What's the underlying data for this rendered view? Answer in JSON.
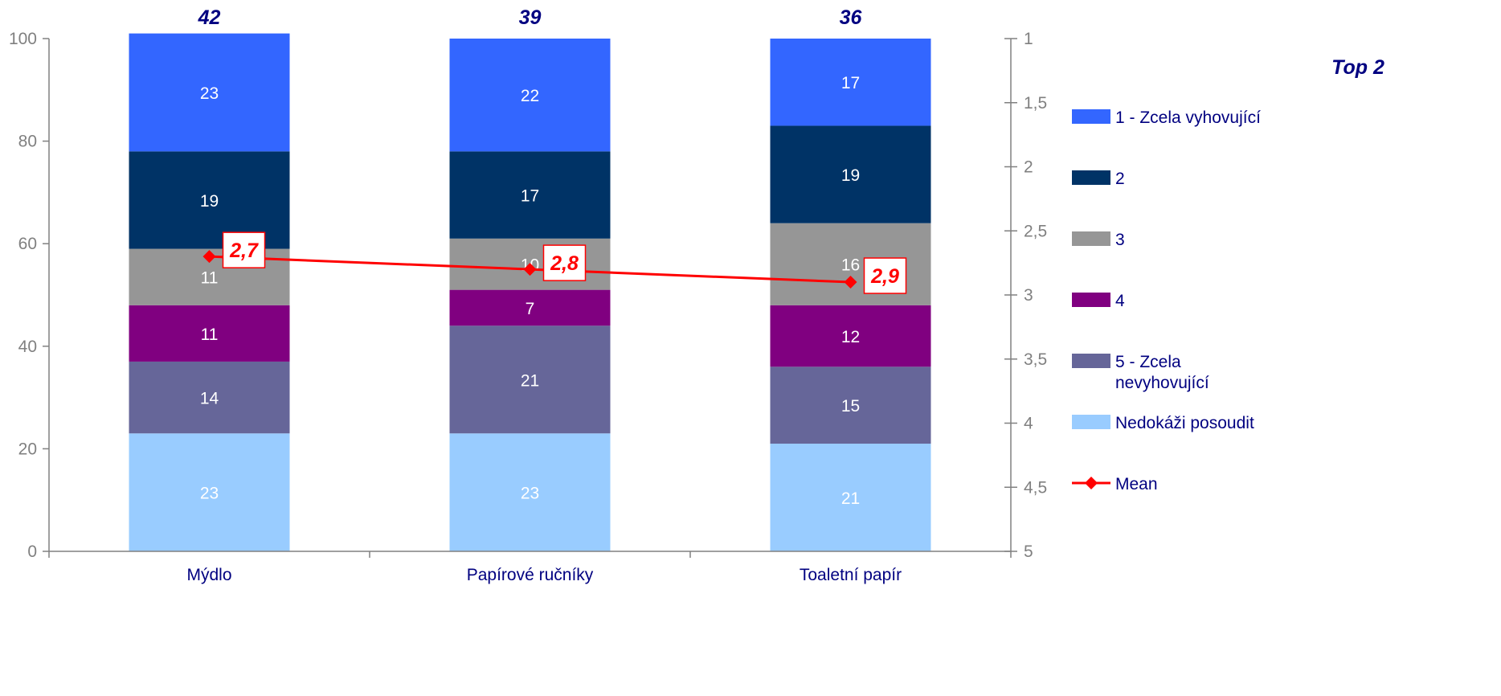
{
  "chart_data": {
    "type": "bar",
    "stacked": true,
    "categories": [
      "Mýdlo",
      "Papírové ručníky",
      "Toaletní papír"
    ],
    "series": [
      {
        "name": "Nedokáži posoudit",
        "values": [
          23,
          23,
          21
        ],
        "color": "#99ccff"
      },
      {
        "name": "5 - Zcela nevyhovující",
        "values": [
          14,
          21,
          15
        ],
        "color": "#666699"
      },
      {
        "name": "4",
        "values": [
          11,
          7,
          12
        ],
        "color": "#800080"
      },
      {
        "name": "3",
        "values": [
          11,
          10,
          16
        ],
        "color": "#969696"
      },
      {
        "name": "2",
        "values": [
          19,
          17,
          19
        ],
        "color": "#003366"
      },
      {
        "name": "1 - Zcela vyhovující",
        "values": [
          23,
          22,
          17
        ],
        "color": "#3366ff"
      }
    ],
    "mean": {
      "name": "Mean",
      "values": [
        2.7,
        2.8,
        2.9
      ],
      "labels": [
        "2,7",
        "2,8",
        "2,9"
      ],
      "color": "#ff0000"
    },
    "top2": {
      "title": "Top 2",
      "values": [
        "42",
        "39",
        "36"
      ]
    },
    "y_left": {
      "min": 0,
      "max": 100,
      "ticks": [
        "0",
        "20",
        "40",
        "60",
        "80",
        "100"
      ]
    },
    "y_right": {
      "min": 1,
      "max": 5,
      "reversed": true,
      "tick_values": [
        1,
        1.5,
        2,
        2.5,
        3,
        3.5,
        4,
        4.5,
        5
      ],
      "ticks": [
        "1",
        "1,5",
        "2",
        "2,5",
        "3",
        "3,5",
        "4",
        "4,5",
        "5"
      ]
    },
    "legend": {
      "placement": "right",
      "items": [
        {
          "label": "1 - Zcela vyhovující",
          "color": "#3366ff",
          "kind": "box"
        },
        {
          "label": "2",
          "color": "#003366",
          "kind": "box"
        },
        {
          "label": "3",
          "color": "#969696",
          "kind": "box"
        },
        {
          "label": "4",
          "color": "#800080",
          "kind": "box"
        },
        {
          "label_lines": [
            "5 - Zcela",
            "nevyhovující"
          ],
          "color": "#666699",
          "kind": "box"
        },
        {
          "label": "Nedokáži posoudit",
          "color": "#99ccff",
          "kind": "box"
        },
        {
          "label": "Mean",
          "color": "#ff0000",
          "kind": "line-marker"
        }
      ]
    },
    "grid": false
  }
}
